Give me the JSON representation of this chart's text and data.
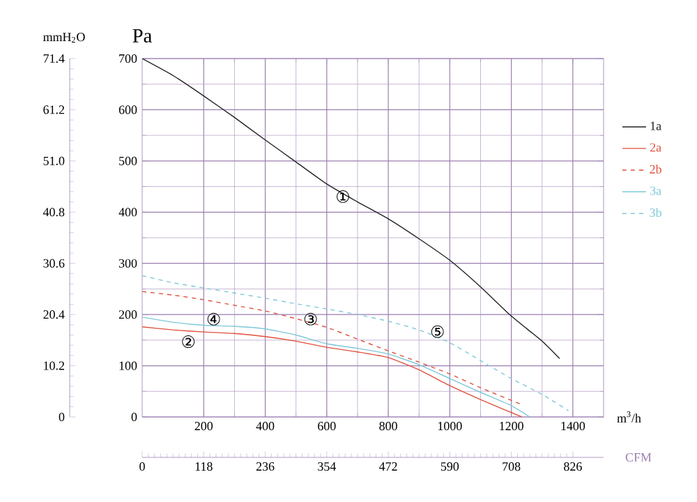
{
  "chart_data": {
    "type": "line",
    "xlabel": "m$^{3}$/h",
    "ylabel": "Pa",
    "y2label": "mmH$_{2}$O",
    "x2label": "CFM",
    "xlim": [
      0,
      1500
    ],
    "xticks": [
      200,
      400,
      600,
      800,
      1000,
      1200,
      1400
    ],
    "ylim": [
      0,
      700
    ],
    "yticks": [
      0,
      100,
      200,
      300,
      400,
      500,
      600,
      700
    ],
    "y2lim": [
      0,
      71.4
    ],
    "y2ticks": [
      0,
      10.2,
      20.4,
      30.6,
      40.8,
      {
        "value": 51,
        "label": "51.0"
      },
      61.2,
      71.4
    ],
    "x2lim": [
      0,
      885
    ],
    "x2ticks": [
      0,
      118,
      236,
      354,
      472,
      590,
      708,
      826
    ],
    "grid": true,
    "legend": "right",
    "series": [
      {
        "name": "1a",
        "color": "#222222",
        "line_style": "solid",
        "x": [
          0,
          100,
          200,
          300,
          400,
          500,
          600,
          700,
          800,
          900,
          1000,
          1100,
          1200,
          1300,
          1357
        ],
        "values": [
          700,
          667,
          627,
          585,
          541,
          498,
          455,
          420,
          387,
          348,
          306,
          254,
          197,
          148,
          114
        ]
      },
      {
        "name": "2a",
        "color": "#e0503c",
        "line_style": "solid",
        "x": [
          0,
          100,
          200,
          300,
          400,
          500,
          600,
          700,
          800,
          900,
          1000,
          1100,
          1234
        ],
        "values": [
          176,
          170,
          166,
          163,
          157,
          148,
          136,
          127,
          116,
          92,
          61,
          34,
          0
        ]
      },
      {
        "name": "2b",
        "color": "#e0503c",
        "line_style": "dashed",
        "x": [
          0,
          100,
          200,
          300,
          400,
          500,
          600,
          700,
          800,
          900,
          1000,
          1100,
          1230
        ],
        "values": [
          245,
          238,
          229,
          218,
          207,
          192,
          175,
          152,
          129,
          107,
          84,
          57,
          25
        ]
      },
      {
        "name": "3a",
        "color": "#7ec8d8",
        "line_style": "solid",
        "x": [
          0,
          100,
          200,
          300,
          400,
          500,
          600,
          700,
          800,
          900,
          1000,
          1100,
          1200,
          1260
        ],
        "values": [
          195,
          185,
          179,
          177,
          172,
          160,
          143,
          134,
          123,
          102,
          75,
          48,
          22,
          0
        ]
      },
      {
        "name": "3b",
        "color": "#7ec8d8",
        "line_style": "dashed",
        "x": [
          0,
          100,
          200,
          300,
          400,
          500,
          600,
          700,
          800,
          900,
          1000,
          1100,
          1200,
          1300,
          1386
        ],
        "values": [
          276,
          262,
          252,
          242,
          232,
          221,
          211,
          200,
          187,
          170,
          145,
          110,
          75,
          44,
          12
        ]
      }
    ],
    "annotations": [
      "①",
      "②",
      "④",
      "③",
      "⑤"
    ]
  }
}
